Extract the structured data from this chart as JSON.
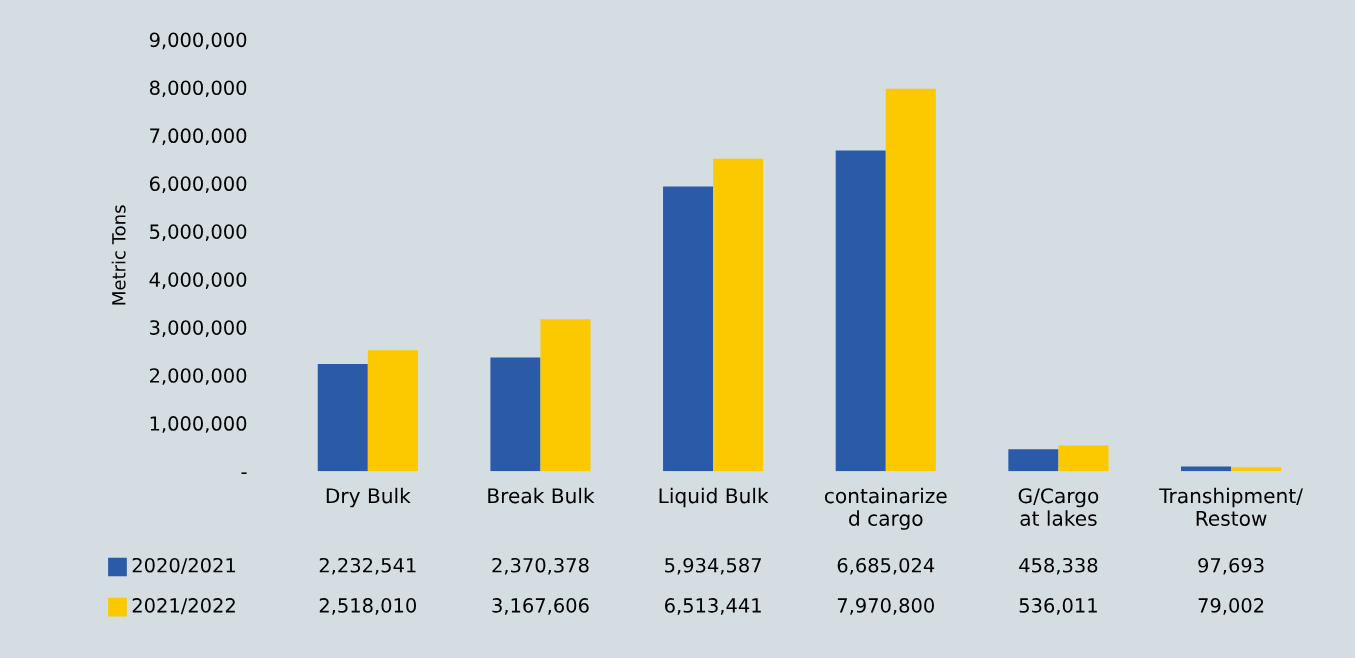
{
  "chart_data": {
    "type": "bar",
    "ylabel": "Metric Tons",
    "categories": [
      "Dry Bulk",
      "Break Bulk",
      "Liquid Bulk",
      "containarize\nd cargo",
      "G/Cargo\nat lakes",
      "Transhipment/\nRestow"
    ],
    "series": [
      {
        "name": "2020/2021",
        "color": "#2a5aa8",
        "values": [
          2232541,
          2370378,
          5934587,
          6685024,
          458338,
          97693
        ],
        "value_labels": [
          "2,232,541",
          "2,370,378",
          "5,934,587",
          "6,685,024",
          "458,338",
          "97,693"
        ]
      },
      {
        "name": "2021/2022",
        "color": "#fcc800",
        "values": [
          2518010,
          3167606,
          6513441,
          7970800,
          536011,
          79002
        ],
        "value_labels": [
          "2,518,010",
          "3,167,606",
          "6,513,441",
          "7,970,800",
          "536,011",
          "79,002"
        ]
      }
    ],
    "ylim": [
      0,
      9000000
    ],
    "yticks": [
      {
        "value": 0,
        "label": "-"
      },
      {
        "value": 1000000,
        "label": "1,000,000"
      },
      {
        "value": 2000000,
        "label": "2,000,000"
      },
      {
        "value": 3000000,
        "label": "3,000,000"
      },
      {
        "value": 4000000,
        "label": "4,000,000"
      },
      {
        "value": 5000000,
        "label": "5,000,000"
      },
      {
        "value": 6000000,
        "label": "6,000,000"
      },
      {
        "value": 7000000,
        "label": "7,000,000"
      },
      {
        "value": 8000000,
        "label": "8,000,000"
      },
      {
        "value": 9000000,
        "label": "9,000,000"
      }
    ],
    "grid": false,
    "legend": "bottom left"
  }
}
